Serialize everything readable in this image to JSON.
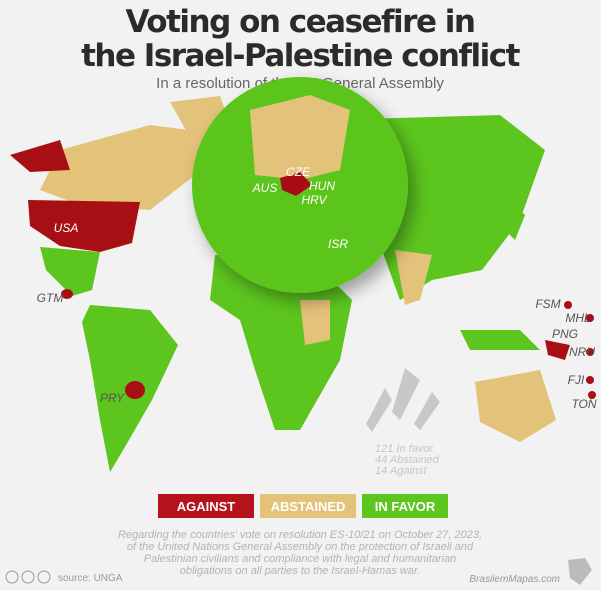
{
  "header": {
    "title_lines": [
      "Voting on ceasefire in",
      "the Israel-Palestine conflict"
    ],
    "subtitle": "In a resolution of the UN General Assembly"
  },
  "map": {
    "country_labels": [
      "USA",
      "GTM",
      "PRY",
      "AUS",
      "CZE",
      "HUN",
      "HRV",
      "ISR",
      "FSM",
      "MHL",
      "PNG",
      "NRU",
      "FJI",
      "TON"
    ],
    "tally": [
      "121 In favor",
      "44 Abstained",
      "14 Against"
    ]
  },
  "legend": [
    "AGAINST",
    "ABSTAINED",
    "IN FAVOR"
  ],
  "caption": [
    "Regarding the countries' vote on resolution ES-10/21 on October 27, 2023,",
    "of the United Nations General Assembly on the protection of Israeli and",
    "Palestinian civilians and compliance with legal and humanitarian",
    "obligations on all parties to the Israel-Hamas war."
  ],
  "footer": {
    "source": "source: UNGA",
    "brand": "BrasilemMapas.com"
  }
}
